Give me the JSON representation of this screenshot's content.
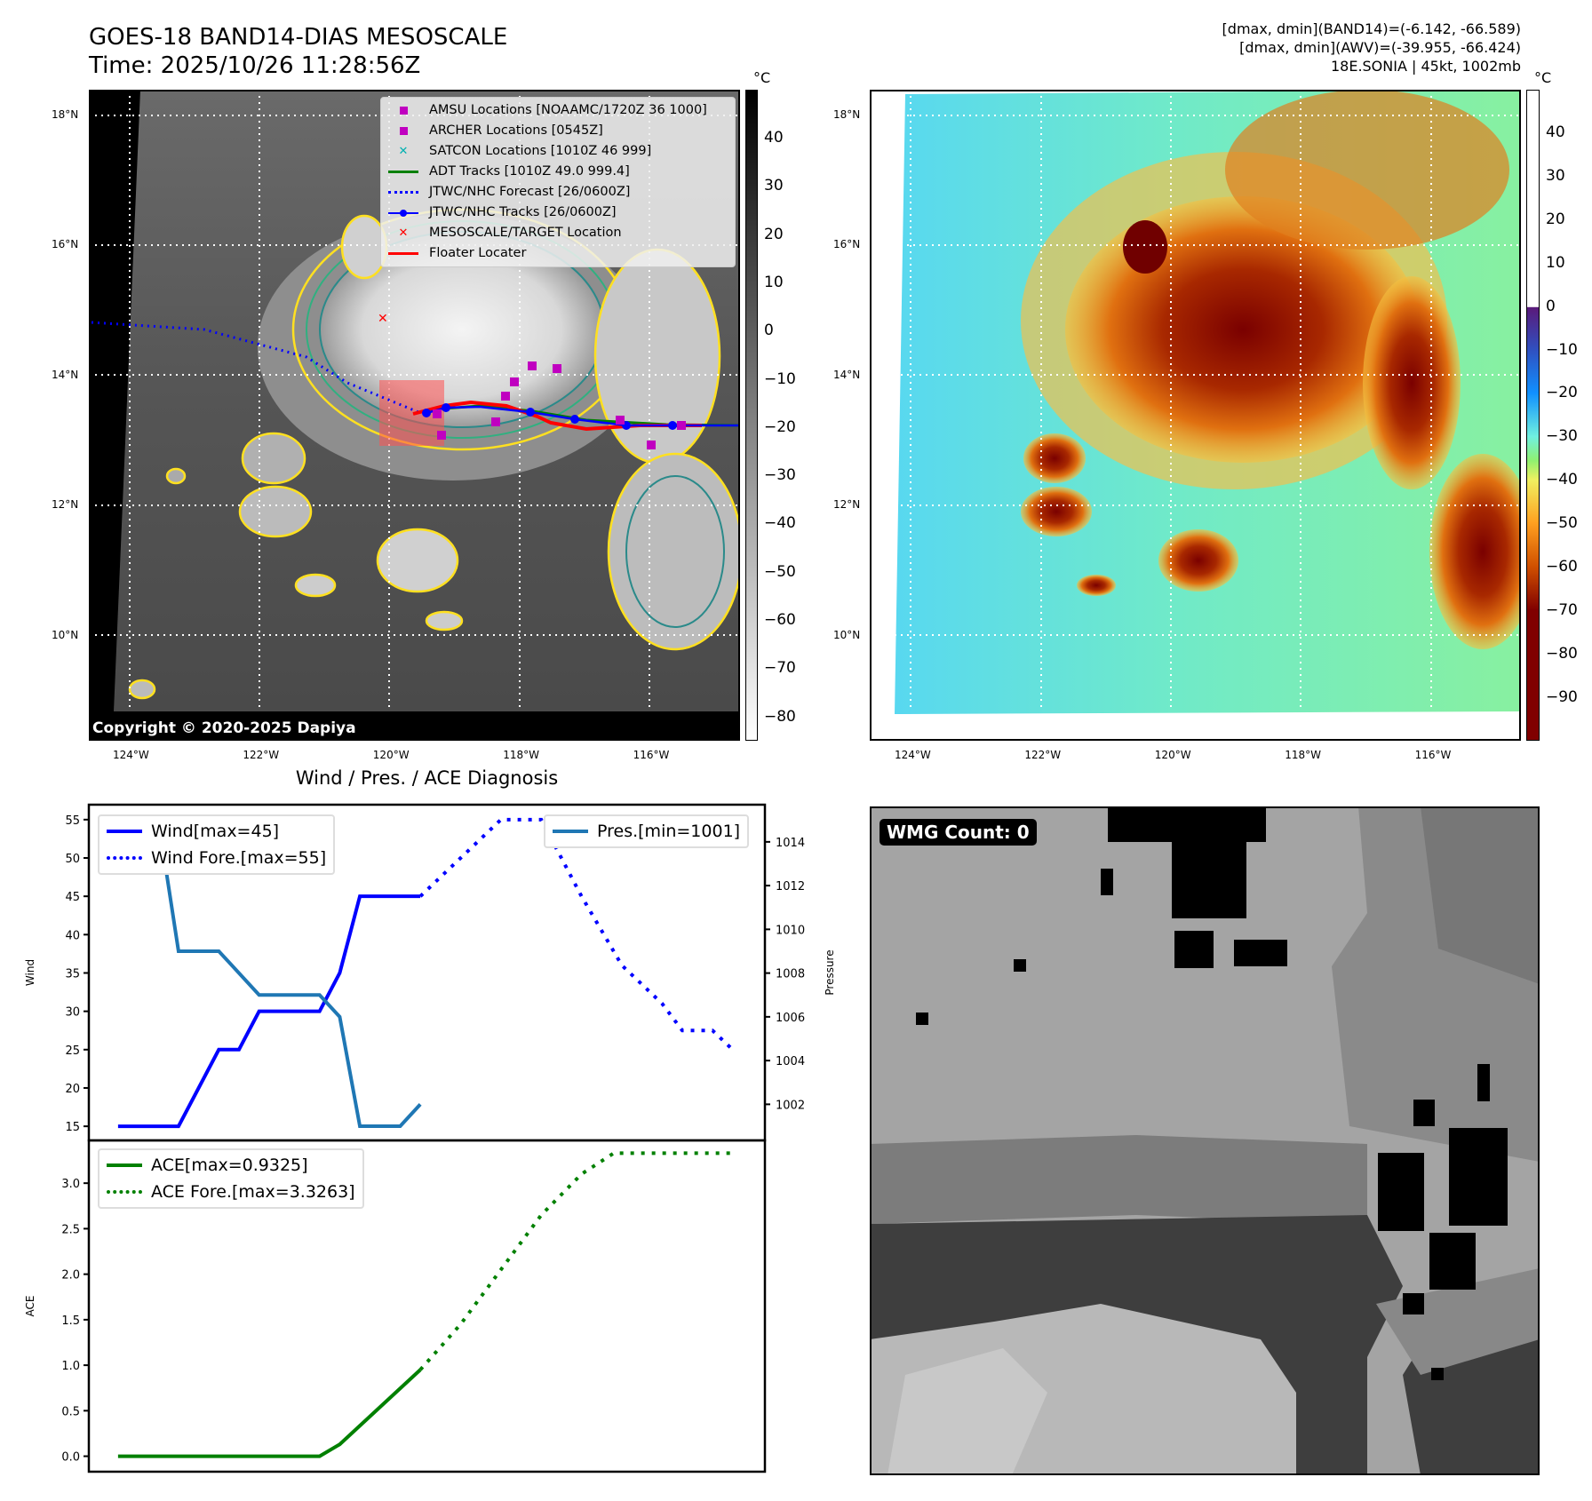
{
  "header": {
    "title_line1": "GOES-18 BAND14-DIAS MESOSCALE",
    "title_line2": "Time: 2025/10/26 11:28:56Z",
    "info_line1": "[dmax, dmin](BAND14)=(-6.142, -66.589)",
    "info_line2": "[dmax, dmin](AWV)=(-39.955, -66.424)",
    "info_line3": "18E.SONIA | 45kt, 1002mb"
  },
  "maps": {
    "lat_labels": [
      "18°N",
      "16°N",
      "14°N",
      "12°N",
      "10°N"
    ],
    "lon_labels": [
      "124°W",
      "122°W",
      "120°W",
      "118°W",
      "116°W"
    ],
    "unit": "°C",
    "copyright": "Copyright © 2020-2025 Dapiya",
    "colorbar_gray_ticks": [
      "40",
      "30",
      "20",
      "10",
      "0",
      "−10",
      "−20",
      "−30",
      "−40",
      "−50",
      "−60",
      "−70",
      "−80"
    ],
    "colorbar_color_ticks": [
      "40",
      "30",
      "20",
      "10",
      "0",
      "−10",
      "−20",
      "−30",
      "−40",
      "−50",
      "−60",
      "−70",
      "−80",
      "−90"
    ],
    "legend": [
      {
        "label": "AMSU Locations [NOAAMC/1720Z 36 1000]",
        "color": "#c000c0",
        "icon": "square-marker"
      },
      {
        "label": "ARCHER Locations [0545Z]",
        "color": "#c000c0",
        "icon": "square-marker"
      },
      {
        "label": "SATCON Locations [1010Z 46 999]",
        "color": "#00b0b0",
        "icon": "x-marker"
      },
      {
        "label": "ADT Tracks [1010Z 49.0 999.4]",
        "color": "#008000",
        "icon": "solid-line"
      },
      {
        "label": "JTWC/NHC Forecast [26/0600Z]",
        "color": "#0000ff",
        "icon": "dotted-line"
      },
      {
        "label": "JTWC/NHC Tracks [26/0600Z]",
        "color": "#0000ff",
        "icon": "line-dot"
      },
      {
        "label": "MESOSCALE/TARGET Location",
        "color": "#ff0000",
        "icon": "x-marker"
      },
      {
        "label": "Floater Locater",
        "color": "#ff0000",
        "icon": "solid-line"
      }
    ],
    "wmg_label": "WMG Count: 0"
  },
  "chart_data": [
    {
      "type": "line",
      "title": "Wind / Pres. / ACE Diagnosis",
      "ylabel": "Wind",
      "ylabel_right": "Pressure",
      "xlim": [
        -1.45,
        32.1
      ],
      "ylim": [
        13.16,
        56.95
      ],
      "ylim_right": [
        1000.35,
        1015.7
      ],
      "yticks": [
        15,
        20,
        25,
        30,
        35,
        40,
        45,
        50,
        55
      ],
      "yticks_right": [
        1002,
        1004,
        1006,
        1008,
        1010,
        1012,
        1014
      ],
      "legend_left": [
        "Wind[max=45]",
        "Wind Fore.[max=55]"
      ],
      "legend_right": [
        "Pres.[min=1001]"
      ],
      "series": [
        {
          "name": "Wind[max=45]",
          "axis": "left",
          "style": "solid",
          "color": "#0000ff",
          "points": [
            [
              0,
              15
            ],
            [
              3,
              15
            ],
            [
              5,
              25
            ],
            [
              6,
              25
            ],
            [
              7,
              30
            ],
            [
              10,
              30
            ],
            [
              11,
              35
            ],
            [
              12,
              45
            ],
            [
              15,
              45
            ]
          ]
        },
        {
          "name": "Wind Fore.[max=55]",
          "axis": "left",
          "style": "dotted",
          "color": "#0000ff",
          "points": [
            [
              15,
              45
            ],
            [
              19,
              55
            ],
            [
              21,
              55
            ],
            [
              23,
              45
            ],
            [
              25,
              36
            ],
            [
              26,
              33.5
            ],
            [
              27,
              31
            ],
            [
              28,
              27.5
            ],
            [
              29.5,
              27.5
            ],
            [
              30.5,
              25
            ]
          ]
        },
        {
          "name": "Pres.[min=1001]",
          "axis": "right",
          "style": "solid",
          "color": "#1f77b4",
          "points": [
            [
              0,
              1015
            ],
            [
              2,
              1015
            ],
            [
              3,
              1009
            ],
            [
              5,
              1009
            ],
            [
              7,
              1007
            ],
            [
              10,
              1007
            ],
            [
              11,
              1006
            ],
            [
              12,
              1001
            ],
            [
              14,
              1001
            ],
            [
              15,
              1002
            ]
          ]
        }
      ]
    },
    {
      "type": "line",
      "ylabel": "ACE",
      "xlim": [
        -1.45,
        32.1
      ],
      "ylim": [
        -0.17,
        3.47
      ],
      "yticks": [
        "0.0",
        "0.5",
        "1.0",
        "1.5",
        "2.0",
        "2.5",
        "3.0"
      ],
      "legend": [
        "ACE[max=0.9325]",
        "ACE Fore.[max=3.3263]"
      ],
      "series": [
        {
          "name": "ACE[max=0.9325]",
          "style": "solid",
          "color": "#008000",
          "points": [
            [
              0,
              0
            ],
            [
              10,
              0
            ],
            [
              11,
              0.13
            ],
            [
              15,
              0.95
            ]
          ]
        },
        {
          "name": "ACE Fore.[max=3.3263]",
          "style": "dotted",
          "color": "#008000",
          "points": [
            [
              15,
              0.95
            ],
            [
              17,
              1.45
            ],
            [
              19,
              2.05
            ],
            [
              21,
              2.65
            ],
            [
              23,
              3.1
            ],
            [
              24.6,
              3.33
            ],
            [
              30.5,
              3.33
            ]
          ]
        }
      ]
    }
  ]
}
